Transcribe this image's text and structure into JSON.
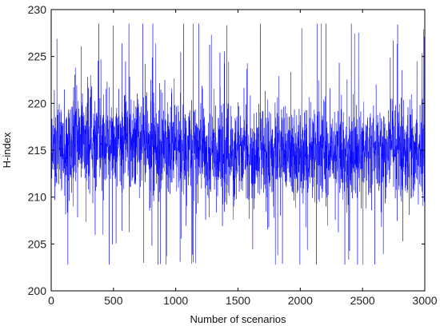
{
  "chart_data": {
    "type": "line",
    "title": "",
    "xlabel": "Number of scenarios",
    "ylabel": "H-index",
    "xlim": [
      0,
      3000
    ],
    "ylim": [
      200,
      230
    ],
    "xticks": [
      0,
      500,
      1000,
      1500,
      2000,
      2500,
      3000
    ],
    "yticks": [
      200,
      205,
      210,
      215,
      220,
      225,
      230
    ],
    "grid": false,
    "legend": "none",
    "series": [
      {
        "color": "#0000ff",
        "points": 3000,
        "x": [
          0,
          100,
          200,
          300,
          400,
          500,
          600,
          700,
          800,
          900,
          1000,
          1100,
          1200,
          1300,
          1400,
          1500,
          1600,
          1700,
          1800,
          1900,
          2000,
          2100,
          2200,
          2300,
          2400,
          2500,
          2600,
          2700,
          2800,
          2900,
          3000
        ],
        "mean": [
          215.0,
          215.5,
          216.0,
          216.0,
          216.2,
          216.3,
          216.2,
          216.0,
          215.8,
          215.5,
          215.3,
          215.2,
          215.0,
          214.8,
          214.7,
          214.5,
          214.5,
          214.6,
          214.7,
          214.8,
          214.6,
          214.5,
          214.5,
          214.6,
          214.7,
          214.9,
          215.0,
          215.1,
          215.1,
          215.0,
          215.0
        ],
        "band_half_width": 3.5,
        "max": 228.5,
        "min": 202.8
      }
    ]
  }
}
